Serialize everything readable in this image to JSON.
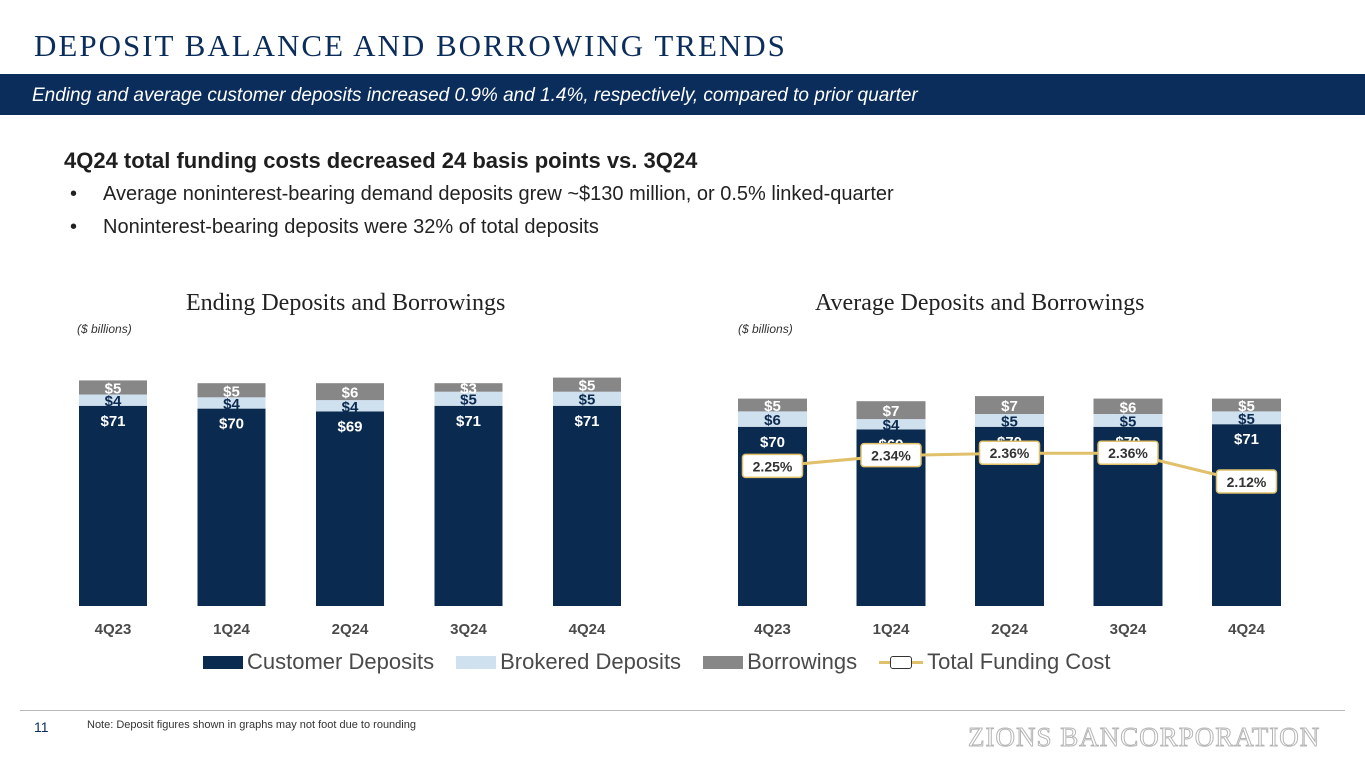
{
  "title": "DEPOSIT BALANCE AND BORROWING TRENDS",
  "banner": "Ending and average customer deposits increased 0.9% and 1.4%, respectively, compared to prior quarter",
  "headline": "4Q24 total funding costs decreased 24 basis points vs. 3Q24",
  "bullets": [
    "Average noninterest-bearing demand deposits grew ~$130 million, or 0.5% linked-quarter",
    "Noninterest-bearing deposits were 32% of total deposits"
  ],
  "bullet_symbol": "•",
  "colors": {
    "customer": "#0b2a4f",
    "brokered": "#cfe0ef",
    "borrowings": "#878787",
    "funding": "#e0c06a",
    "navy": "#0b2d5b"
  },
  "chart_data": [
    {
      "type": "bar",
      "title": "Ending Deposits and Borrowings",
      "units": "($ billions)",
      "categories": [
        "4Q23",
        "1Q24",
        "2Q24",
        "3Q24",
        "4Q24"
      ],
      "series": [
        {
          "name": "Customer Deposits",
          "values": [
            71,
            70,
            69,
            71,
            71
          ],
          "labels": [
            "$71",
            "$70",
            "$69",
            "$71",
            "$71"
          ]
        },
        {
          "name": "Brokered Deposits",
          "values": [
            4,
            4,
            4,
            5,
            5
          ],
          "labels": [
            "$4",
            "$4",
            "$4",
            "$5",
            "$5"
          ]
        },
        {
          "name": "Borrowings",
          "values": [
            5,
            5,
            6,
            3,
            5
          ],
          "labels": [
            "$5",
            "$5",
            "$6",
            "$3",
            "$5"
          ]
        }
      ]
    },
    {
      "type": "bar",
      "title": "Average Deposits and Borrowings",
      "units": "($ billions)",
      "categories": [
        "4Q23",
        "1Q24",
        "2Q24",
        "3Q24",
        "4Q24"
      ],
      "series": [
        {
          "name": "Customer Deposits",
          "values": [
            70,
            69,
            70,
            70,
            71
          ],
          "labels": [
            "$70",
            "$69",
            "$70",
            "$70",
            "$71"
          ]
        },
        {
          "name": "Brokered Deposits",
          "values": [
            6,
            4,
            5,
            5,
            5
          ],
          "labels": [
            "$6",
            "$4",
            "$5",
            "$5",
            "$5"
          ]
        },
        {
          "name": "Borrowings",
          "values": [
            5,
            7,
            7,
            6,
            5
          ],
          "labels": [
            "$5",
            "$7",
            "$7",
            "$6",
            "$5"
          ]
        }
      ],
      "line": {
        "name": "Total Funding Cost",
        "values": [
          2.25,
          2.34,
          2.36,
          2.36,
          2.12
        ],
        "labels": [
          "2.25%",
          "2.34%",
          "2.36%",
          "2.36%",
          "2.12%"
        ]
      }
    }
  ],
  "legend": [
    "Customer Deposits",
    "Brokered Deposits",
    "Borrowings",
    "Total Funding Cost"
  ],
  "footer": {
    "page_number": "11",
    "note": "Note: Deposit figures shown in graphs may not foot due to rounding",
    "logo": "ZIONS BANCORPORATION"
  }
}
